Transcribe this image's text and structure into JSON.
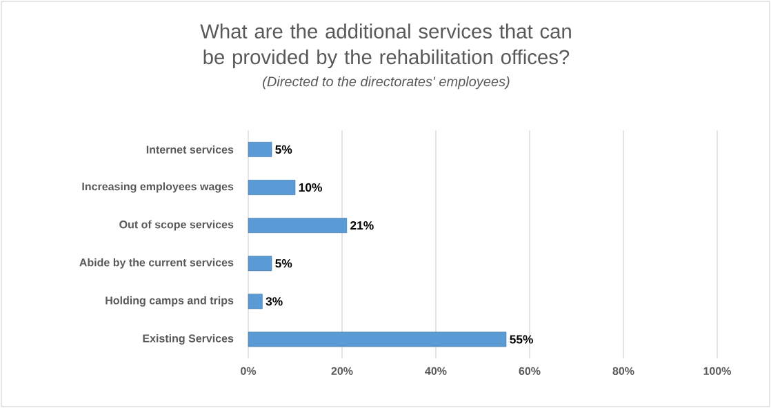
{
  "chart_data": {
    "type": "bar",
    "orientation": "horizontal",
    "title": "What are the additional services that can be provided by the rehabilitation offices?",
    "subtitle": "(Directed to the directorates' employees)",
    "categories": [
      "Internet services",
      "Increasing employees wages",
      "Out of scope services",
      "Abide by the current services",
      "Holding camps and trips",
      "Existing Services"
    ],
    "values": [
      5,
      10,
      21,
      5,
      3,
      55
    ],
    "value_labels": [
      "5%",
      "10%",
      "21%",
      "5%",
      "3%",
      "55%"
    ],
    "color": "#5b9bd5",
    "xlim": [
      0,
      100
    ],
    "xticks": [
      {
        "value": 0,
        "label": "0%"
      },
      {
        "value": 20,
        "label": "20%"
      },
      {
        "value": 40,
        "label": "40%"
      },
      {
        "value": 60,
        "label": "60%"
      },
      {
        "value": 80,
        "label": "80%"
      },
      {
        "value": 100,
        "label": "100%"
      }
    ],
    "grid": "x"
  }
}
